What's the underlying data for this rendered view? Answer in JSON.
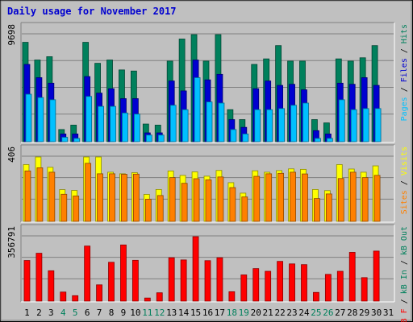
{
  "chart_data": {
    "type": "bar",
    "title": "Daily usage for November 2017",
    "categories": [
      "1",
      "2",
      "3",
      "4",
      "5",
      "6",
      "7",
      "8",
      "9",
      "10",
      "11",
      "12",
      "13",
      "14",
      "15",
      "16",
      "17",
      "18",
      "19",
      "20",
      "21",
      "22",
      "23",
      "24",
      "25",
      "26",
      "27",
      "28",
      "29",
      "30",
      "31"
    ],
    "weekend_days": [
      "4",
      "5",
      "11",
      "12",
      "18",
      "19",
      "25",
      "26"
    ],
    "panels": [
      {
        "name": "hits-files-pages",
        "ymax_label": "9698",
        "ymax": 9698,
        "axis_labels": [
          {
            "text": "Pages",
            "color": "#00C0FF"
          },
          {
            "text": " / ",
            "color": "#000000"
          },
          {
            "text": "Files",
            "color": "#0000D0"
          },
          {
            "text": " / ",
            "color": "#000000"
          },
          {
            "text": "Hits",
            "color": "#00805C"
          }
        ],
        "series": [
          {
            "name": "Hits",
            "color": "#00805C",
            "values": [
              9000,
              7400,
              7700,
              1100,
              1500,
              9000,
              7100,
              7400,
              6500,
              6400,
              1600,
              1500,
              7300,
              9300,
              10000,
              7300,
              9700,
              2900,
              2000,
              7000,
              7500,
              8700,
              7300,
              7300,
              2000,
              1700,
              7500,
              7300,
              7600,
              8700,
              0
            ]
          },
          {
            "name": "Files",
            "color": "#0000D0",
            "values": [
              7000,
              5800,
              5300,
              700,
              700,
              5900,
              4400,
              4800,
              3900,
              3900,
              800,
              800,
              5500,
              4600,
              7400,
              5600,
              6100,
              2000,
              1300,
              4800,
              5500,
              5100,
              5200,
              4700,
              1000,
              700,
              5300,
              5200,
              5800,
              5100,
              0
            ]
          },
          {
            "name": "Pages",
            "color": "#00C0FF",
            "values": [
              4300,
              4000,
              3800,
              400,
              300,
              4100,
              3200,
              3200,
              2600,
              2500,
              600,
              600,
              3300,
              2900,
              5800,
              3600,
              3500,
              1100,
              700,
              2900,
              2900,
              3000,
              3300,
              3500,
              300,
              300,
              3800,
              2900,
              3000,
              3000,
              0
            ]
          }
        ]
      },
      {
        "name": "visits-sites",
        "ymax_label": "406",
        "ymax": 406,
        "axis_labels": [
          {
            "text": "Sites",
            "color": "#FF8000"
          },
          {
            "text": " / ",
            "color": "#000000"
          },
          {
            "text": "Visits",
            "color": "#FFFF00"
          }
        ],
        "series": [
          {
            "name": "Visits",
            "color": "#FFFF00",
            "values": [
              358,
              406,
              341,
              200,
              195,
              406,
              406,
              310,
              300,
              307,
              170,
              201,
              318,
              290,
              312,
              285,
              321,
              244,
              178,
              319,
              310,
              320,
              331,
              328,
              201,
              194,
              358,
              330,
              310,
              350,
              0
            ]
          },
          {
            "name": "Sites",
            "color": "#FF8000",
            "values": [
              318,
              338,
              310,
              171,
              160,
              366,
              300,
              300,
              297,
              298,
              140,
              163,
              276,
              240,
              269,
              262,
              280,
              213,
              154,
              284,
              300,
              303,
              310,
              299,
              144,
              173,
              270,
              310,
              276,
              290,
              0
            ]
          }
        ]
      },
      {
        "name": "kbytes",
        "ymax_label": "356791",
        "ymax": 356791,
        "axis_labels": [
          {
            "text": "kB F",
            "color": "#FF0000"
          },
          {
            "text": " / ",
            "color": "#000000"
          },
          {
            "text": "kB In",
            "color": "#00805C"
          },
          {
            "text": " / ",
            "color": "#000000"
          },
          {
            "text": "kB Out",
            "color": "#00805C"
          }
        ],
        "series": [
          {
            "name": "kB F",
            "color": "#FF0000",
            "values": [
              225000,
              265000,
              168000,
              50000,
              30000,
              305000,
              90000,
              215000,
              311000,
              226000,
              17000,
              46000,
              240000,
              228000,
              365000,
              224000,
              240000,
              52000,
              145000,
              180000,
              165000,
              220000,
              206000,
              202000,
              48000,
              148000,
              165000,
              270000,
              130000,
              277000,
              0
            ]
          }
        ]
      }
    ]
  }
}
